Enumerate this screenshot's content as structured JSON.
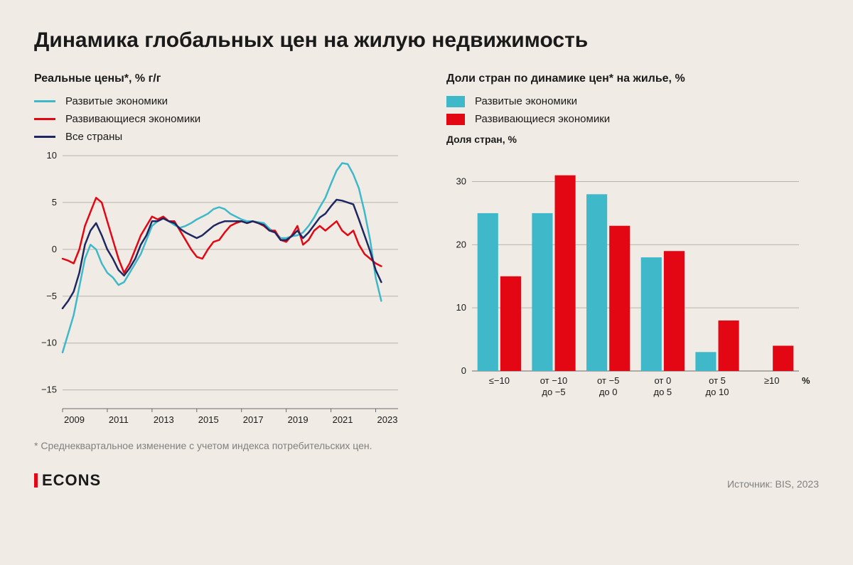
{
  "title": "Динамика глобальных цен на жилую недвижимость",
  "footnote": "* Среднеквартальное изменение с учетом индекса потребительских цен.",
  "logo": "ECONS",
  "source": "Источник: BIS, 2023",
  "colors": {
    "background": "#f0ece5",
    "text": "#1a1a1a",
    "muted": "#808080",
    "cyan": "#3fb8c9",
    "red": "#e30613",
    "navy": "#1e2761",
    "axis": "#6a6a6a",
    "grid": "#b8b4ab"
  },
  "line_chart": {
    "type": "line",
    "subtitle": "Реальные цены*, % г/г",
    "legend": [
      {
        "label": "Развитые экономики",
        "color": "#3fb8c9"
      },
      {
        "label": "Развивающиеся экономики",
        "color": "#e30613"
      },
      {
        "label": "Все страны",
        "color": "#1e2761"
      }
    ],
    "ylim": [
      -17,
      10
    ],
    "yticks": [
      -15,
      -10,
      -5,
      0,
      5,
      10
    ],
    "x_labels": [
      "2009",
      "2011",
      "2013",
      "2015",
      "2017",
      "2019",
      "2021",
      "2023"
    ],
    "x_range": [
      2009,
      2024
    ],
    "line_width": 2.5,
    "label_fontsize": 13,
    "series": {
      "advanced": [
        [
          2009.0,
          -11
        ],
        [
          2009.25,
          -9
        ],
        [
          2009.5,
          -7
        ],
        [
          2009.75,
          -4
        ],
        [
          2010.0,
          -1
        ],
        [
          2010.25,
          0.5
        ],
        [
          2010.5,
          0
        ],
        [
          2010.75,
          -1.5
        ],
        [
          2011.0,
          -2.5
        ],
        [
          2011.25,
          -3.0
        ],
        [
          2011.5,
          -3.8
        ],
        [
          2011.75,
          -3.5
        ],
        [
          2012.0,
          -2.5
        ],
        [
          2012.25,
          -1.5
        ],
        [
          2012.5,
          -0.5
        ],
        [
          2012.75,
          1.0
        ],
        [
          2013.0,
          2.5
        ],
        [
          2013.25,
          3.0
        ],
        [
          2013.5,
          3.3
        ],
        [
          2013.75,
          3.0
        ],
        [
          2014.0,
          2.6
        ],
        [
          2014.25,
          2.3
        ],
        [
          2014.5,
          2.5
        ],
        [
          2014.75,
          2.8
        ],
        [
          2015.0,
          3.2
        ],
        [
          2015.25,
          3.5
        ],
        [
          2015.5,
          3.8
        ],
        [
          2015.75,
          4.3
        ],
        [
          2016.0,
          4.5
        ],
        [
          2016.25,
          4.3
        ],
        [
          2016.5,
          3.8
        ],
        [
          2016.75,
          3.5
        ],
        [
          2017.0,
          3.2
        ],
        [
          2017.25,
          3.0
        ],
        [
          2017.5,
          3.0
        ],
        [
          2017.75,
          2.9
        ],
        [
          2018.0,
          2.8
        ],
        [
          2018.25,
          2.2
        ],
        [
          2018.5,
          1.8
        ],
        [
          2018.75,
          1.2
        ],
        [
          2019.0,
          1.2
        ],
        [
          2019.25,
          1.4
        ],
        [
          2019.5,
          1.5
        ],
        [
          2019.75,
          1.8
        ],
        [
          2020.0,
          2.5
        ],
        [
          2020.25,
          3.4
        ],
        [
          2020.5,
          4.5
        ],
        [
          2020.75,
          5.5
        ],
        [
          2021.0,
          7.0
        ],
        [
          2021.25,
          8.4
        ],
        [
          2021.5,
          9.2
        ],
        [
          2021.75,
          9.1
        ],
        [
          2022.0,
          8.0
        ],
        [
          2022.25,
          6.5
        ],
        [
          2022.5,
          4.0
        ],
        [
          2022.75,
          1.0
        ],
        [
          2023.0,
          -3.0
        ],
        [
          2023.25,
          -5.5
        ]
      ],
      "emerging": [
        [
          2009.0,
          -1
        ],
        [
          2009.25,
          -1.2
        ],
        [
          2009.5,
          -1.5
        ],
        [
          2009.75,
          0.0
        ],
        [
          2010.0,
          2.5
        ],
        [
          2010.25,
          4.0
        ],
        [
          2010.5,
          5.5
        ],
        [
          2010.75,
          5.0
        ],
        [
          2011.0,
          3.0
        ],
        [
          2011.25,
          1.0
        ],
        [
          2011.5,
          -1.0
        ],
        [
          2011.75,
          -2.5
        ],
        [
          2012.0,
          -1.5
        ],
        [
          2012.25,
          0.0
        ],
        [
          2012.5,
          1.5
        ],
        [
          2012.75,
          2.5
        ],
        [
          2013.0,
          3.5
        ],
        [
          2013.25,
          3.2
        ],
        [
          2013.5,
          3.5
        ],
        [
          2013.75,
          3.0
        ],
        [
          2014.0,
          3.0
        ],
        [
          2014.25,
          2.0
        ],
        [
          2014.5,
          1.0
        ],
        [
          2014.75,
          0.0
        ],
        [
          2015.0,
          -0.8
        ],
        [
          2015.25,
          -1.0
        ],
        [
          2015.5,
          0.0
        ],
        [
          2015.75,
          0.8
        ],
        [
          2016.0,
          1.0
        ],
        [
          2016.25,
          1.8
        ],
        [
          2016.5,
          2.5
        ],
        [
          2016.75,
          2.8
        ],
        [
          2017.0,
          3.0
        ],
        [
          2017.25,
          2.8
        ],
        [
          2017.5,
          3.0
        ],
        [
          2017.75,
          2.8
        ],
        [
          2018.0,
          2.5
        ],
        [
          2018.25,
          2.0
        ],
        [
          2018.5,
          2.0
        ],
        [
          2018.75,
          1.0
        ],
        [
          2019.0,
          0.8
        ],
        [
          2019.25,
          1.5
        ],
        [
          2019.5,
          2.5
        ],
        [
          2019.75,
          0.5
        ],
        [
          2020.0,
          1.0
        ],
        [
          2020.25,
          2.0
        ],
        [
          2020.5,
          2.5
        ],
        [
          2020.75,
          2.0
        ],
        [
          2021.0,
          2.5
        ],
        [
          2021.25,
          3.0
        ],
        [
          2021.5,
          2.0
        ],
        [
          2021.75,
          1.5
        ],
        [
          2022.0,
          2.0
        ],
        [
          2022.25,
          0.5
        ],
        [
          2022.5,
          -0.5
        ],
        [
          2022.75,
          -1.0
        ],
        [
          2023.0,
          -1.5
        ],
        [
          2023.25,
          -1.8
        ]
      ],
      "all": [
        [
          2009.0,
          -6.3
        ],
        [
          2009.25,
          -5.5
        ],
        [
          2009.5,
          -4.5
        ],
        [
          2009.75,
          -2.5
        ],
        [
          2010.0,
          0.5
        ],
        [
          2010.25,
          2.0
        ],
        [
          2010.5,
          2.8
        ],
        [
          2010.75,
          1.5
        ],
        [
          2011.0,
          0.0
        ],
        [
          2011.25,
          -1.0
        ],
        [
          2011.5,
          -2.2
        ],
        [
          2011.75,
          -2.8
        ],
        [
          2012.0,
          -2.0
        ],
        [
          2012.25,
          -1.0
        ],
        [
          2012.5,
          0.5
        ],
        [
          2012.75,
          1.5
        ],
        [
          2013.0,
          3.0
        ],
        [
          2013.25,
          3.0
        ],
        [
          2013.5,
          3.3
        ],
        [
          2013.75,
          3.0
        ],
        [
          2014.0,
          2.8
        ],
        [
          2014.25,
          2.2
        ],
        [
          2014.5,
          1.8
        ],
        [
          2014.75,
          1.5
        ],
        [
          2015.0,
          1.2
        ],
        [
          2015.25,
          1.5
        ],
        [
          2015.5,
          2.0
        ],
        [
          2015.75,
          2.5
        ],
        [
          2016.0,
          2.8
        ],
        [
          2016.25,
          3.0
        ],
        [
          2016.5,
          3.0
        ],
        [
          2016.75,
          3.0
        ],
        [
          2017.0,
          3.0
        ],
        [
          2017.25,
          2.8
        ],
        [
          2017.5,
          3.0
        ],
        [
          2017.75,
          2.8
        ],
        [
          2018.0,
          2.6
        ],
        [
          2018.25,
          2.0
        ],
        [
          2018.5,
          1.8
        ],
        [
          2018.75,
          1.0
        ],
        [
          2019.0,
          1.0
        ],
        [
          2019.25,
          1.4
        ],
        [
          2019.5,
          2.0
        ],
        [
          2019.75,
          1.2
        ],
        [
          2020.0,
          1.8
        ],
        [
          2020.25,
          2.6
        ],
        [
          2020.5,
          3.4
        ],
        [
          2020.75,
          3.8
        ],
        [
          2021.0,
          4.6
        ],
        [
          2021.25,
          5.3
        ],
        [
          2021.5,
          5.2
        ],
        [
          2021.75,
          5.0
        ],
        [
          2022.0,
          4.8
        ],
        [
          2022.25,
          3.2
        ],
        [
          2022.5,
          1.5
        ],
        [
          2022.75,
          -0.2
        ],
        [
          2023.0,
          -2.2
        ],
        [
          2023.25,
          -3.5
        ]
      ]
    }
  },
  "bar_chart": {
    "type": "bar",
    "subtitle": "Доли стран по динамике цен* на жилье, %",
    "legend": [
      {
        "label": "Развитые экономики",
        "color": "#3fb8c9"
      },
      {
        "label": "Развивающиеся экономики",
        "color": "#e30613"
      }
    ],
    "axis_title": "Доля стран, %",
    "ylim": [
      0,
      34
    ],
    "yticks": [
      0,
      10,
      20,
      30
    ],
    "categories": [
      "≤−10",
      "от −10\nдо −5",
      "от −5\nдо 0",
      "от 0\nдо 5",
      "от 5\nдо 10",
      "≥10"
    ],
    "x_unit_label": "%",
    "bar_width": 0.38,
    "label_fontsize": 13,
    "series": {
      "advanced": [
        25,
        25,
        28,
        18,
        3,
        0
      ],
      "emerging": [
        15,
        31,
        23,
        19,
        8,
        4
      ]
    }
  }
}
